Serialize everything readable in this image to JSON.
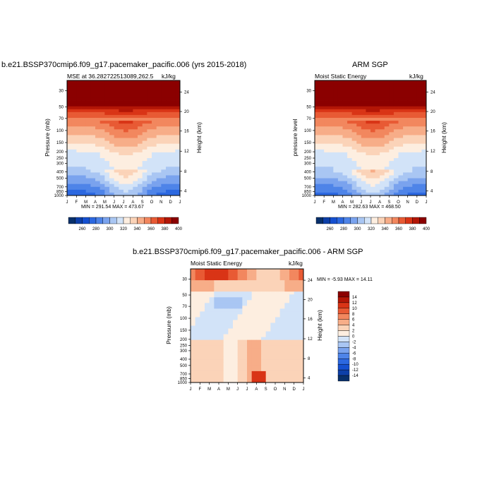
{
  "chart_data": [
    {
      "type": "heatmap",
      "title": "b.e21.BSSP370cmip6.f09_g17.pacemaker_pacific.006 (yrs 2015-2018)",
      "left_subtitle": "MSE at 36.282722513089,262.5",
      "right_subtitle": "kJ/kg",
      "ylabel": "Pressure (mb)",
      "ylabel_right": "Height (km)",
      "min_max": "MIN = 291.54 MAX = 473.67",
      "colorbar_labels": [
        "260",
        "280",
        "300",
        "320",
        "340",
        "360",
        "380",
        "400"
      ]
    },
    {
      "type": "heatmap",
      "title": "ARM SGP",
      "left_subtitle": "Moist Static Energy",
      "right_subtitle": "kJ/kg",
      "ylabel": "pressure level",
      "ylabel_right": "Height (km)",
      "min_max": "MIN = 282.63 MAX = 468.50",
      "colorbar_labels": [
        "260",
        "280",
        "300",
        "320",
        "340",
        "360",
        "380",
        "400"
      ]
    },
    {
      "type": "heatmap",
      "title": "b.e21.BSSP370cmip6.f09_g17.pacemaker_pacific.006 - ARM SGP",
      "left_subtitle": "Moist Static Energy",
      "right_subtitle": "kJ/kg",
      "ylabel": "Pressure (mb)",
      "ylabel_right": "Height (km)",
      "min_max": "MIN =  -5.93 MAX =  14.11",
      "colorbar_labels": [
        "14",
        "12",
        "10",
        "8",
        "6",
        "4",
        "2",
        "0",
        "-2",
        "-4",
        "-6",
        "-8",
        "-10",
        "-12",
        "-14"
      ]
    }
  ],
  "months": [
    "J",
    "F",
    "M",
    "A",
    "M",
    "J",
    "J",
    "A",
    "S",
    "O",
    "N",
    "D",
    "J"
  ],
  "pressure_ticks": [
    "30",
    "50",
    "70",
    "100",
    "150",
    "200",
    "250",
    "300",
    "400",
    "500",
    "700",
    "850",
    "1000"
  ],
  "height_ticks": [
    "24",
    "20",
    "16",
    "12",
    "8",
    "4"
  ],
  "colors": {
    "mse_levels": [
      "#08306b",
      "#0d3fa8",
      "#1550d0",
      "#2c68e0",
      "#4e84e8",
      "#7aa3ee",
      "#a9c6f3",
      "#d2e3f8",
      "#fdeee0",
      "#fbd3b8",
      "#f7ad88",
      "#f2875e",
      "#e85a34",
      "#d93416",
      "#b31606",
      "#8b0000"
    ],
    "diff_levels": [
      "#8b0000",
      "#b31606",
      "#d93416",
      "#e85a34",
      "#f2875e",
      "#f7ad88",
      "#fbd3b8",
      "#fdeee0",
      "#d2e3f8",
      "#a9c6f3",
      "#7aa3ee",
      "#4e84e8",
      "#2c68e0",
      "#1550d0",
      "#0d3fa8",
      "#08306b"
    ]
  }
}
